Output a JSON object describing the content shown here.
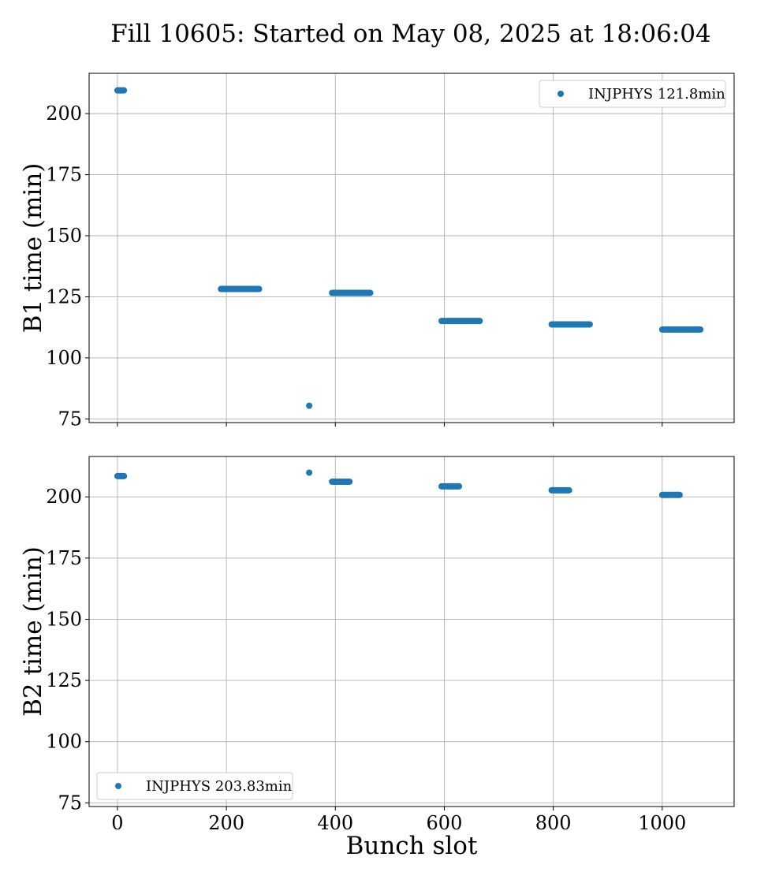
{
  "figure": {
    "title": "Fill 10605: Started on May 08, 2025 at 18:06:04"
  },
  "chart_data": [
    {
      "type": "scatter",
      "ylabel": "B1 time (min)",
      "xlabel": "",
      "xlim": [
        -52,
        1132
      ],
      "ylim": [
        73.5,
        216.5
      ],
      "xticks": [
        0,
        200,
        400,
        600,
        800,
        1000
      ],
      "yticks": [
        75,
        100,
        125,
        150,
        175,
        200
      ],
      "show_xtick_labels": false,
      "grid": true,
      "legend": "upper right",
      "color": "#1f77b4",
      "series": [
        {
          "name": "INJPHYS 121.8min",
          "segments": [
            {
              "x_start": 0,
              "x_end": 12,
              "y": 209.5
            },
            {
              "x_start": 190,
              "x_end": 260,
              "y": 128.2
            },
            {
              "x_start": 394,
              "x_end": 464,
              "y": 126.6
            },
            {
              "x_start": 595,
              "x_end": 665,
              "y": 115.1
            },
            {
              "x_start": 797,
              "x_end": 867,
              "y": 113.7
            },
            {
              "x_start": 1000,
              "x_end": 1070,
              "y": 111.6
            }
          ],
          "points": [
            {
              "x": 352,
              "y": 80.4
            }
          ]
        }
      ]
    },
    {
      "type": "scatter",
      "ylabel": "B2 time (min)",
      "xlabel": "Bunch slot",
      "xlim": [
        -52,
        1132
      ],
      "ylim": [
        73.5,
        216.5
      ],
      "xticks": [
        0,
        200,
        400,
        600,
        800,
        1000
      ],
      "yticks": [
        75,
        100,
        125,
        150,
        175,
        200
      ],
      "show_xtick_labels": true,
      "grid": true,
      "legend": "lower left",
      "color": "#1f77b4",
      "series": [
        {
          "name": "INJPHYS 203.83min",
          "segments": [
            {
              "x_start": 0,
              "x_end": 12,
              "y": 208.5
            },
            {
              "x_start": 394,
              "x_end": 426,
              "y": 206.2
            },
            {
              "x_start": 595,
              "x_end": 627,
              "y": 204.3
            },
            {
              "x_start": 797,
              "x_end": 829,
              "y": 202.7
            },
            {
              "x_start": 1000,
              "x_end": 1032,
              "y": 200.8
            }
          ],
          "points": [
            {
              "x": 352,
              "y": 209.9
            }
          ]
        }
      ]
    }
  ]
}
